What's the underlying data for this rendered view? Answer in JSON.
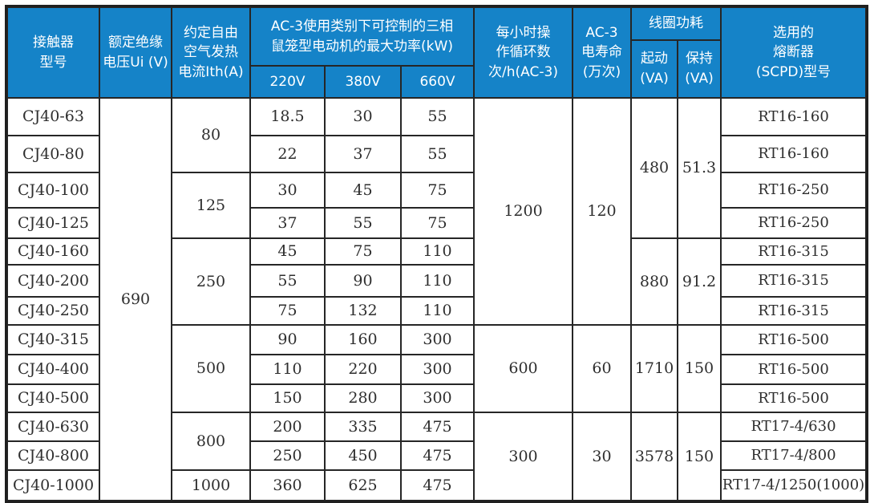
{
  "page": {
    "background_color": "#ffffff"
  },
  "table": {
    "accent_color": "#1583c8",
    "border_color": "#262626",
    "header": {
      "model": "接触器\n型号",
      "insulation": "额定绝缘\n电压Ui (V)",
      "thermal_current": "约定自由\n空气发热\n电流Ith(A)",
      "kw_group": "AC-3使用类别下可控制的三相\n鼠笼型电动机的最大功率(kW)",
      "kw_220": "220V",
      "kw_380": "380V",
      "kw_660": "660V",
      "cycles": "每小时操\n作循环数\n次/h(AC-3)",
      "life": "AC-3\n电寿命\n(万次)",
      "coil_group": "线圈功耗",
      "coil_start": "起动\n(VA)",
      "coil_hold": "保持\n(VA)",
      "fuse": "选用的\n熔断器\n(SCPD)型号"
    },
    "rows": [
      {
        "model": "CJ40-63",
        "kw220": "18.5",
        "kw380": "30",
        "kw660": "55",
        "fuse": "RT16-160"
      },
      {
        "model": "CJ40-80",
        "kw220": "22",
        "kw380": "37",
        "kw660": "55",
        "fuse": "RT16-160"
      },
      {
        "model": "CJ40-100",
        "kw220": "30",
        "kw380": "45",
        "kw660": "75",
        "fuse": "RT16-250"
      },
      {
        "model": "CJ40-125",
        "kw220": "37",
        "kw380": "55",
        "kw660": "75",
        "fuse": "RT16-250"
      },
      {
        "model": "CJ40-160",
        "kw220": "45",
        "kw380": "75",
        "kw660": "110",
        "fuse": "RT16-315"
      },
      {
        "model": "CJ40-200",
        "kw220": "55",
        "kw380": "90",
        "kw660": "110",
        "fuse": "RT16-315"
      },
      {
        "model": "CJ40-250",
        "kw220": "75",
        "kw380": "132",
        "kw660": "110",
        "fuse": "RT16-315"
      },
      {
        "model": "CJ40-315",
        "kw220": "90",
        "kw380": "160",
        "kw660": "300",
        "fuse": "RT16-500"
      },
      {
        "model": "CJ40-400",
        "kw220": "110",
        "kw380": "220",
        "kw660": "300",
        "fuse": "RT16-500"
      },
      {
        "model": "CJ40-500",
        "kw220": "150",
        "kw380": "280",
        "kw660": "300",
        "fuse": "RT16-500"
      },
      {
        "model": "CJ40-630",
        "kw220": "200",
        "kw380": "335",
        "kw660": "475",
        "fuse": "RT17-4/630"
      },
      {
        "model": "CJ40-800",
        "kw220": "250",
        "kw380": "450",
        "kw660": "475",
        "fuse": "RT17-4/800"
      },
      {
        "model": "CJ40-1000",
        "kw220": "360",
        "kw380": "625",
        "kw660": "475",
        "fuse": "RT17-4/1250(1000)"
      }
    ],
    "merged_columns": {
      "insulation": [
        {
          "value": "690",
          "start": 0,
          "span": 13
        }
      ],
      "thermal_current": [
        {
          "value": "80",
          "start": 0,
          "span": 2
        },
        {
          "value": "125",
          "start": 2,
          "span": 2
        },
        {
          "value": "250",
          "start": 4,
          "span": 3
        },
        {
          "value": "500",
          "start": 7,
          "span": 3
        },
        {
          "value": "800",
          "start": 10,
          "span": 2
        },
        {
          "value": "1000",
          "start": 12,
          "span": 1
        }
      ],
      "cycles": [
        {
          "value": "1200",
          "start": 0,
          "span": 7
        },
        {
          "value": "600",
          "start": 7,
          "span": 3
        },
        {
          "value": "300",
          "start": 10,
          "span": 3
        }
      ],
      "life": [
        {
          "value": "120",
          "start": 0,
          "span": 7
        },
        {
          "value": "60",
          "start": 7,
          "span": 3
        },
        {
          "value": "30",
          "start": 10,
          "span": 3
        }
      ],
      "coil_start": [
        {
          "value": "480",
          "start": 0,
          "span": 4
        },
        {
          "value": "880",
          "start": 4,
          "span": 3
        },
        {
          "value": "1710",
          "start": 7,
          "span": 3
        },
        {
          "value": "3578",
          "start": 10,
          "span": 3
        }
      ],
      "coil_hold": [
        {
          "value": "51.3",
          "start": 0,
          "span": 4
        },
        {
          "value": "91.2",
          "start": 4,
          "span": 3
        },
        {
          "value": "150",
          "start": 7,
          "span": 3
        },
        {
          "value": "150",
          "start": 10,
          "span": 3
        }
      ]
    }
  }
}
